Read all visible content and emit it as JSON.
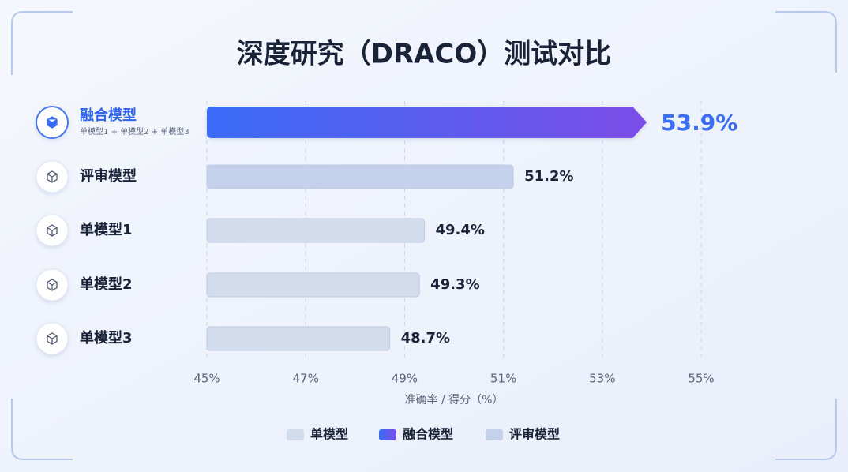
{
  "chart_data": {
    "type": "bar",
    "orientation": "horizontal",
    "title": "深度研究（DRACO）测试对比",
    "categories": [
      "融合模型",
      "评审模型",
      "单模型1",
      "单模型2",
      "单模型3"
    ],
    "category_subtitles": [
      "单模型1 + 单模型2 + 单模型3",
      null,
      null,
      null,
      null
    ],
    "series": [
      {
        "name": "单模型",
        "color": "#d3dcec",
        "values": [
          null,
          null,
          49.4,
          49.3,
          48.7
        ],
        "value_labels": [
          null,
          null,
          "49.4%",
          "49.3%",
          "48.7%"
        ]
      },
      {
        "name": "融合模型",
        "color": "#3a6cf6",
        "values": [
          53.9,
          null,
          null,
          null,
          null
        ],
        "value_labels": [
          "53.9%",
          null,
          null,
          null,
          null
        ]
      },
      {
        "name": "评审模型",
        "color": "#c4d1ea",
        "values": [
          null,
          51.2,
          null,
          null,
          null
        ],
        "value_labels": [
          null,
          "51.2%",
          null,
          null,
          null
        ]
      }
    ],
    "xlabel": "准确率 / 得分（%）",
    "xlim": [
      45,
      55
    ],
    "xticks": [
      {
        "value": 45,
        "label": "45%"
      },
      {
        "value": 47,
        "label": "47%"
      },
      {
        "value": 49,
        "label": "49%"
      },
      {
        "value": 51,
        "label": "51%"
      },
      {
        "value": 53,
        "label": "53%"
      },
      {
        "value": 55,
        "label": "55%"
      }
    ],
    "grid": true,
    "legend": "bottom"
  }
}
